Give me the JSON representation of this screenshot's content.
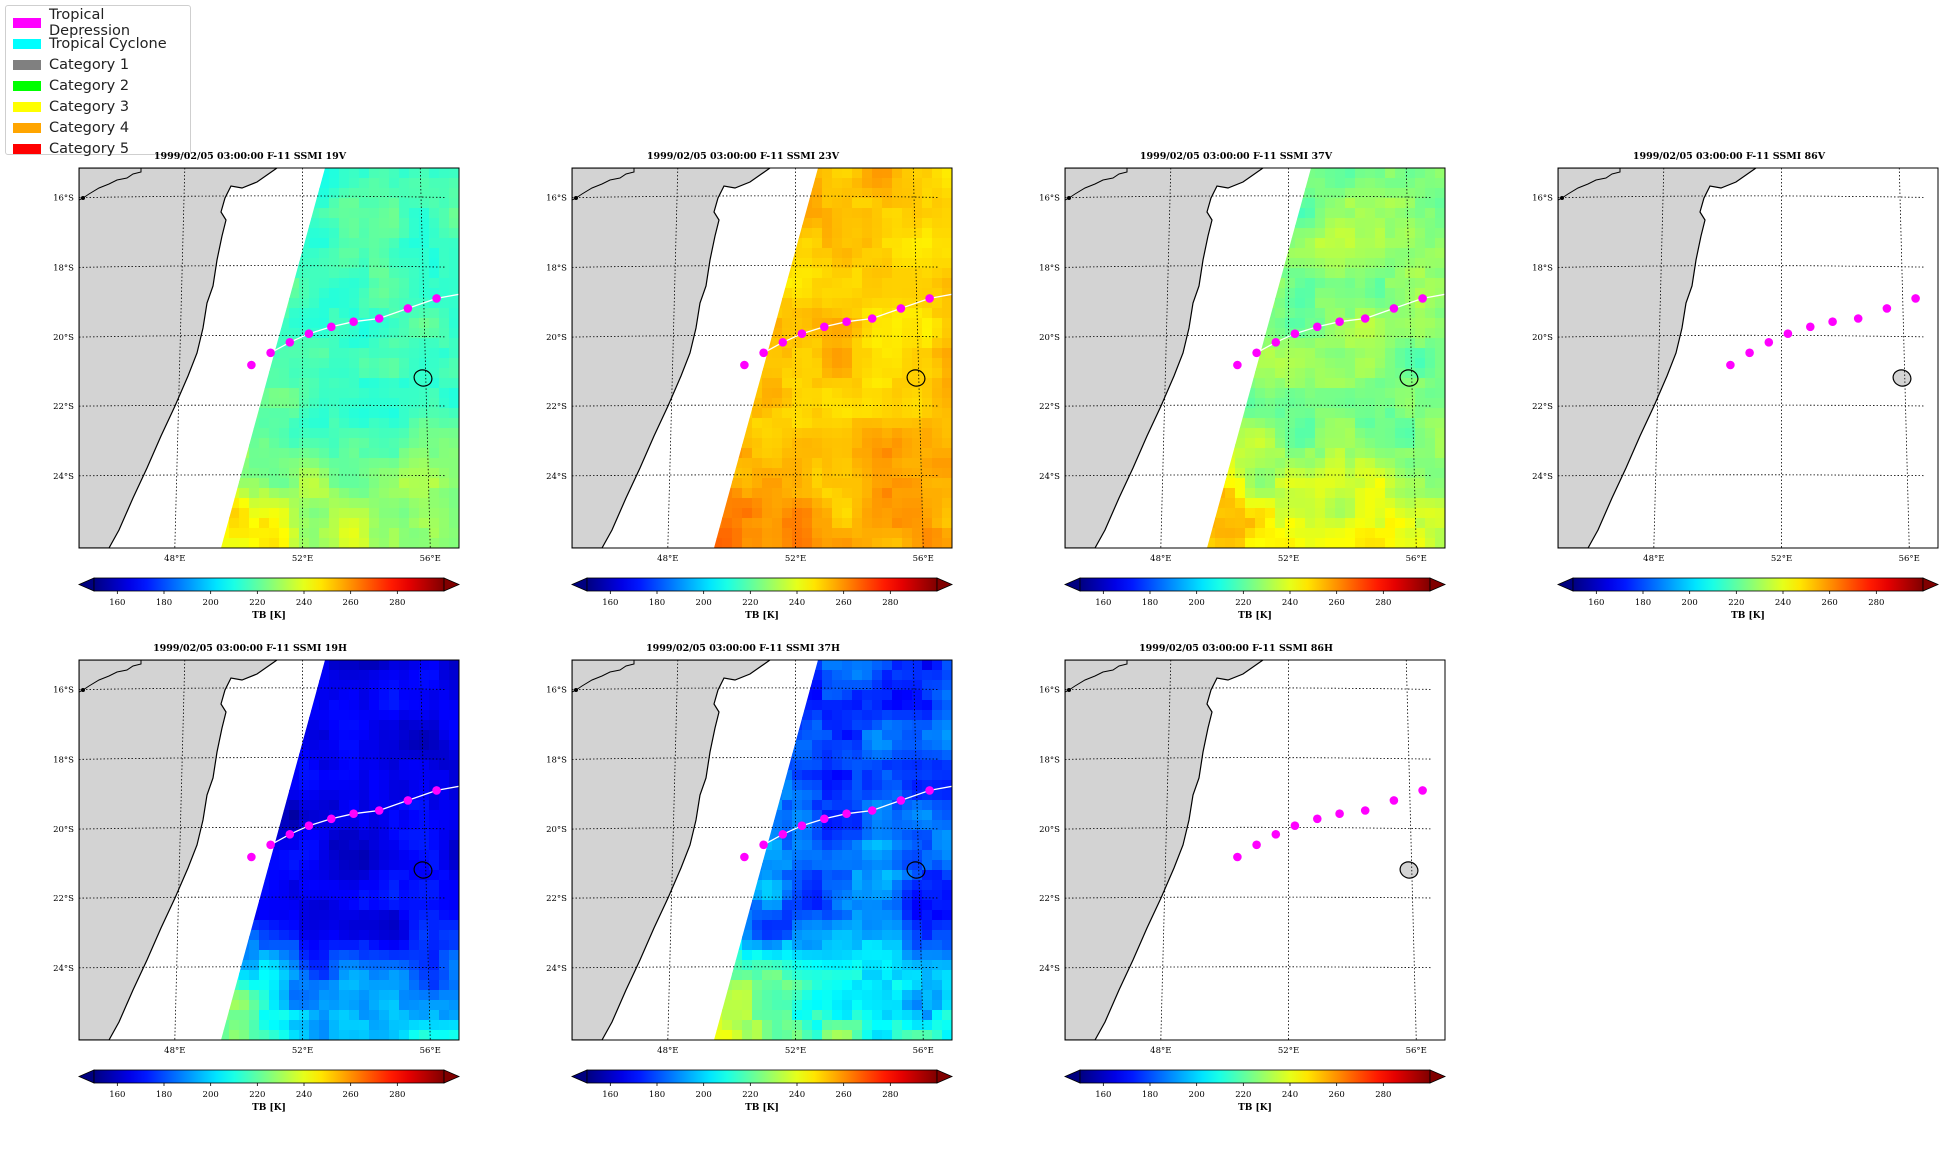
{
  "colors": {
    "tropical_depression": "#ff00ff",
    "tropical_cyclone": "#00ffff",
    "category_1": "#808080",
    "category_2": "#00ff00",
    "category_3": "#ffff00",
    "category_4": "#ffa500",
    "category_5": "#ff0000",
    "land": "#d3d3d3"
  },
  "legend": {
    "items": [
      {
        "label": "Tropical Depression",
        "color": "#ff00ff"
      },
      {
        "label": "Tropical Cyclone",
        "color": "#00ffff"
      },
      {
        "label": "Category 1",
        "color": "#808080"
      },
      {
        "label": "Category 2",
        "color": "#00ff00"
      },
      {
        "label": "Category 3",
        "color": "#ffff00"
      },
      {
        "label": "Category 4",
        "color": "#ffa500"
      },
      {
        "label": "Category 5",
        "color": "#ff0000"
      }
    ]
  },
  "chart_data": {
    "type": "heatmap",
    "colormap": "jet",
    "colorbar_label": "TB [K]",
    "colorbar_ticks": [
      160,
      180,
      200,
      220,
      240,
      260,
      280
    ],
    "colorbar_range": [
      150,
      300
    ],
    "lat_ticks": [
      "16°S",
      "18°S",
      "20°S",
      "22°S",
      "24°S"
    ],
    "lon_ticks": [
      "48°E",
      "52°E",
      "56°E"
    ],
    "track_lon": [
      50.4,
      51.0,
      51.6,
      52.2,
      52.9,
      53.6,
      54.4,
      55.3,
      56.2
    ],
    "track_lat": [
      -20.85,
      -20.5,
      -20.2,
      -19.95,
      -19.75,
      -19.6,
      -19.5,
      -19.2,
      -18.9
    ],
    "panels": [
      {
        "title": "1999/02/05 03:00:00  F-11 SSMI 19V",
        "has_swath": true,
        "base_tb": 218,
        "variation": 10,
        "south_tb": 242
      },
      {
        "title": "1999/02/05 03:00:00  F-11 SSMI 23V",
        "has_swath": true,
        "base_tb": 252,
        "variation": 8,
        "south_tb": 262
      },
      {
        "title": "1999/02/05 03:00:00  F-11 SSMI 37V",
        "has_swath": true,
        "base_tb": 226,
        "variation": 12,
        "south_tb": 252
      },
      {
        "title": "1999/02/05 03:00:00  F-11 SSMI 86V",
        "has_swath": false
      },
      {
        "title": "1999/02/05 03:00:00  F-11 SSMI 19H",
        "has_swath": true,
        "base_tb": 165,
        "variation": 12,
        "south_tb": 218
      },
      {
        "title": "1999/02/05 03:00:00  F-11 SSMI 37H",
        "has_swath": true,
        "base_tb": 182,
        "variation": 20,
        "south_tb": 235
      },
      {
        "title": "1999/02/05 03:00:00  F-11 SSMI 86H",
        "has_swath": false
      }
    ]
  }
}
